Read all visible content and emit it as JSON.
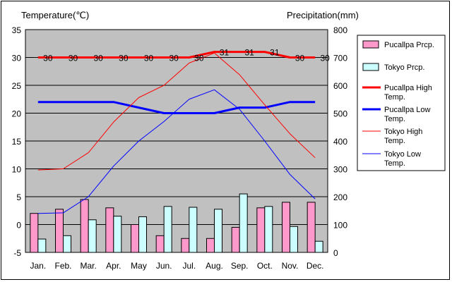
{
  "chart_data": {
    "type": "combo-bar-line",
    "y_left_label": "Temperature(℃)",
    "y_right_label": "Precipitation(mm)",
    "ylim_left": [
      -5,
      35
    ],
    "ylim_right": [
      0,
      800
    ],
    "yticks_left": [
      "35",
      "30",
      "25",
      "20",
      "15",
      "10",
      "5",
      "0",
      "-5"
    ],
    "yticks_right": [
      "800",
      "700",
      "600",
      "500",
      "400",
      "300",
      "200",
      "100",
      "0"
    ],
    "categories": [
      "Jan.",
      "Feb.",
      "Mar.",
      "Apr.",
      "May",
      "Jun.",
      "Jul.",
      "Aug.",
      "Sep.",
      "Oct.",
      "Nov.",
      "Dec."
    ],
    "bars": [
      {
        "name": "Pucallpa Prcp.",
        "color": "#ff99cc",
        "values": [
          140,
          155,
          190,
          160,
          100,
          60,
          50,
          50,
          90,
          160,
          180,
          180
        ]
      },
      {
        "name": "Tokyo Prcp.",
        "color": "#ccffff",
        "values": [
          48,
          60,
          117,
          130,
          128,
          165,
          162,
          155,
          210,
          165,
          93,
          40
        ]
      }
    ],
    "lines": [
      {
        "name": "Pucallpa High Temp.",
        "color": "#ff0000",
        "width": 3,
        "values": [
          30,
          30,
          30,
          30,
          30,
          30,
          30,
          31,
          31,
          31,
          30,
          30
        ],
        "labels": [
          "30",
          "30",
          "30",
          "30",
          "30",
          "30",
          "30",
          "31",
          "31",
          "31",
          "30",
          "30"
        ]
      },
      {
        "name": "Pucallpa Low Temp.",
        "color": "#0000ff",
        "width": 3,
        "values": [
          22,
          22,
          22,
          22,
          21,
          20,
          20,
          20,
          21,
          21,
          22,
          22
        ]
      },
      {
        "name": "Tokyo High Temp.",
        "color": "#ff0000",
        "width": 1,
        "values": [
          9.8,
          10,
          12.9,
          18.4,
          22.8,
          25,
          29,
          30.8,
          26.9,
          21.5,
          16.3,
          12
        ]
      },
      {
        "name": "Tokyo Low Temp.",
        "color": "#0000ff",
        "width": 1,
        "values": [
          2,
          2.1,
          5,
          10.5,
          15,
          18.5,
          22.5,
          24.2,
          20.7,
          15,
          9,
          4.6
        ]
      }
    ],
    "legend_entries": [
      {
        "name": "Pucallpa Prcp.",
        "line1": "Pucallpa Prcp.",
        "line2": ""
      },
      {
        "name": "Tokyo Prcp.",
        "line1": "Tokyo Prcp.",
        "line2": ""
      },
      {
        "name": "Pucallpa High Temp.",
        "line1": "Pucallpa High",
        "line2": "Temp."
      },
      {
        "name": "Pucallpa Low Temp.",
        "line1": "Pucallpa Low",
        "line2": "Temp."
      },
      {
        "name": "Tokyo High Temp.",
        "line1": "Tokyo High",
        "line2": "Temp."
      },
      {
        "name": "Tokyo Low Temp.",
        "line1": "Tokyo Low",
        "line2": "Temp."
      }
    ],
    "legend_placement": "right",
    "plot_background": "#c0c0c0",
    "grid": "horizontal"
  }
}
